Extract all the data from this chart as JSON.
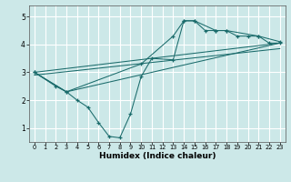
{
  "line1_x": [
    0,
    2,
    3,
    4,
    5,
    6,
    7,
    8,
    9,
    10,
    11,
    13,
    14,
    15,
    16,
    17,
    18,
    19,
    20,
    21,
    22,
    23
  ],
  "line1_y": [
    3.0,
    2.5,
    2.3,
    2.0,
    1.75,
    1.2,
    0.7,
    0.65,
    1.5,
    2.85,
    3.5,
    3.45,
    4.85,
    4.85,
    4.5,
    4.5,
    4.5,
    4.3,
    4.3,
    4.3,
    4.05,
    4.05
  ],
  "line2_x": [
    0,
    3,
    10,
    13,
    14,
    15,
    17,
    18,
    21,
    23
  ],
  "line2_y": [
    3.0,
    2.3,
    3.3,
    4.3,
    4.85,
    4.85,
    4.5,
    4.5,
    4.3,
    4.1
  ],
  "line3_x": [
    0,
    3,
    23
  ],
  "line3_y": [
    3.0,
    2.3,
    4.05
  ],
  "line4_x": [
    0,
    23
  ],
  "line4_y": [
    3.0,
    4.05
  ],
  "line5_x": [
    0,
    23
  ],
  "line5_y": [
    2.9,
    3.85
  ],
  "color": "#1a6b6b",
  "bg_color": "#cce8e8",
  "grid_color": "#ffffff",
  "xlabel": "Humidex (Indice chaleur)",
  "xlim": [
    -0.5,
    23.5
  ],
  "ylim": [
    0.5,
    5.4
  ],
  "yticks": [
    1,
    2,
    3,
    4,
    5
  ],
  "xticks": [
    0,
    1,
    2,
    3,
    4,
    5,
    6,
    7,
    8,
    9,
    10,
    11,
    12,
    13,
    14,
    15,
    16,
    17,
    18,
    19,
    20,
    21,
    22,
    23
  ]
}
